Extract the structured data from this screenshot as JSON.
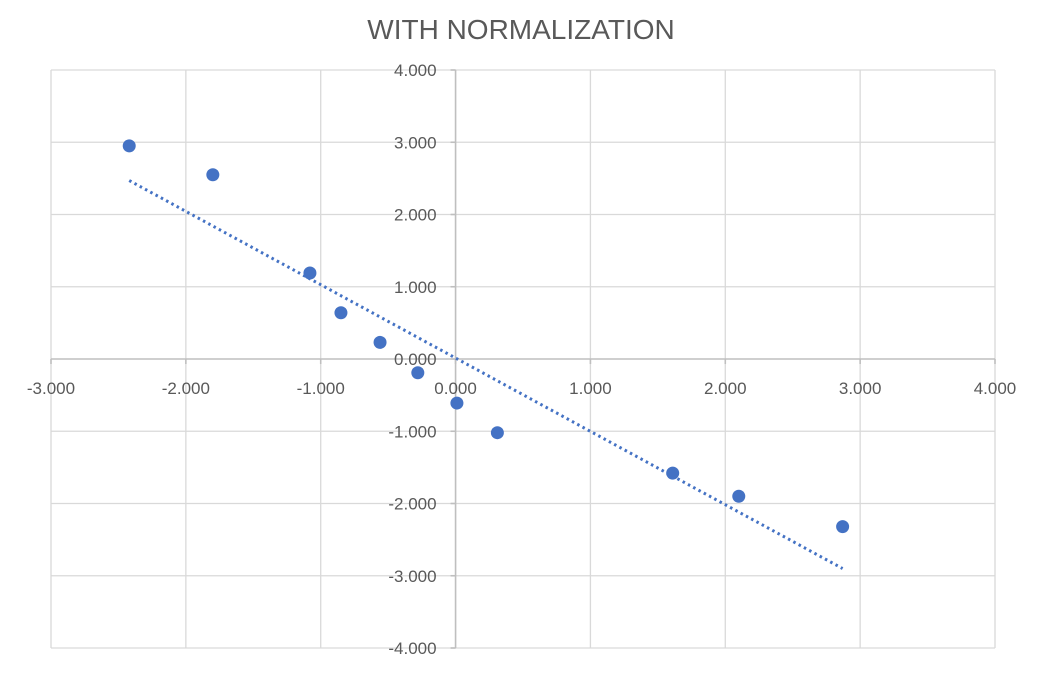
{
  "chart_data": {
    "type": "scatter",
    "title": "WITH NORMALIZATION",
    "xlabel": "",
    "ylabel": "",
    "xlim": [
      -3,
      4
    ],
    "ylim": [
      -4,
      4
    ],
    "x_ticks": [
      -3,
      -2,
      -1,
      0,
      1,
      2,
      3,
      4
    ],
    "y_ticks": [
      -4,
      -3,
      -2,
      -1,
      0,
      1,
      2,
      3,
      4
    ],
    "x_tick_labels": [
      "-3.000",
      "-2.000",
      "-1.000",
      "0.000",
      "1.000",
      "2.000",
      "3.000",
      "4.000"
    ],
    "y_tick_labels": [
      "-4.000",
      "-3.000",
      "-2.000",
      "-1.000",
      "0.000",
      "1.000",
      "2.000",
      "3.000",
      "4.000"
    ],
    "grid": true,
    "series": [
      {
        "color": "#4472c4",
        "x": [
          -2.42,
          -1.8,
          -1.08,
          -0.85,
          -0.56,
          -0.28,
          0.01,
          0.31,
          1.61,
          2.1,
          2.87
        ],
        "y": [
          2.95,
          2.55,
          1.19,
          0.64,
          0.23,
          -0.19,
          -0.61,
          -1.02,
          -1.58,
          -1.9,
          -2.32
        ]
      }
    ],
    "trendline": {
      "type": "linear",
      "style": "dotted",
      "color": "#4472c4",
      "x": [
        -2.42,
        2.87
      ],
      "y": [
        2.47,
        -2.9
      ]
    }
  }
}
